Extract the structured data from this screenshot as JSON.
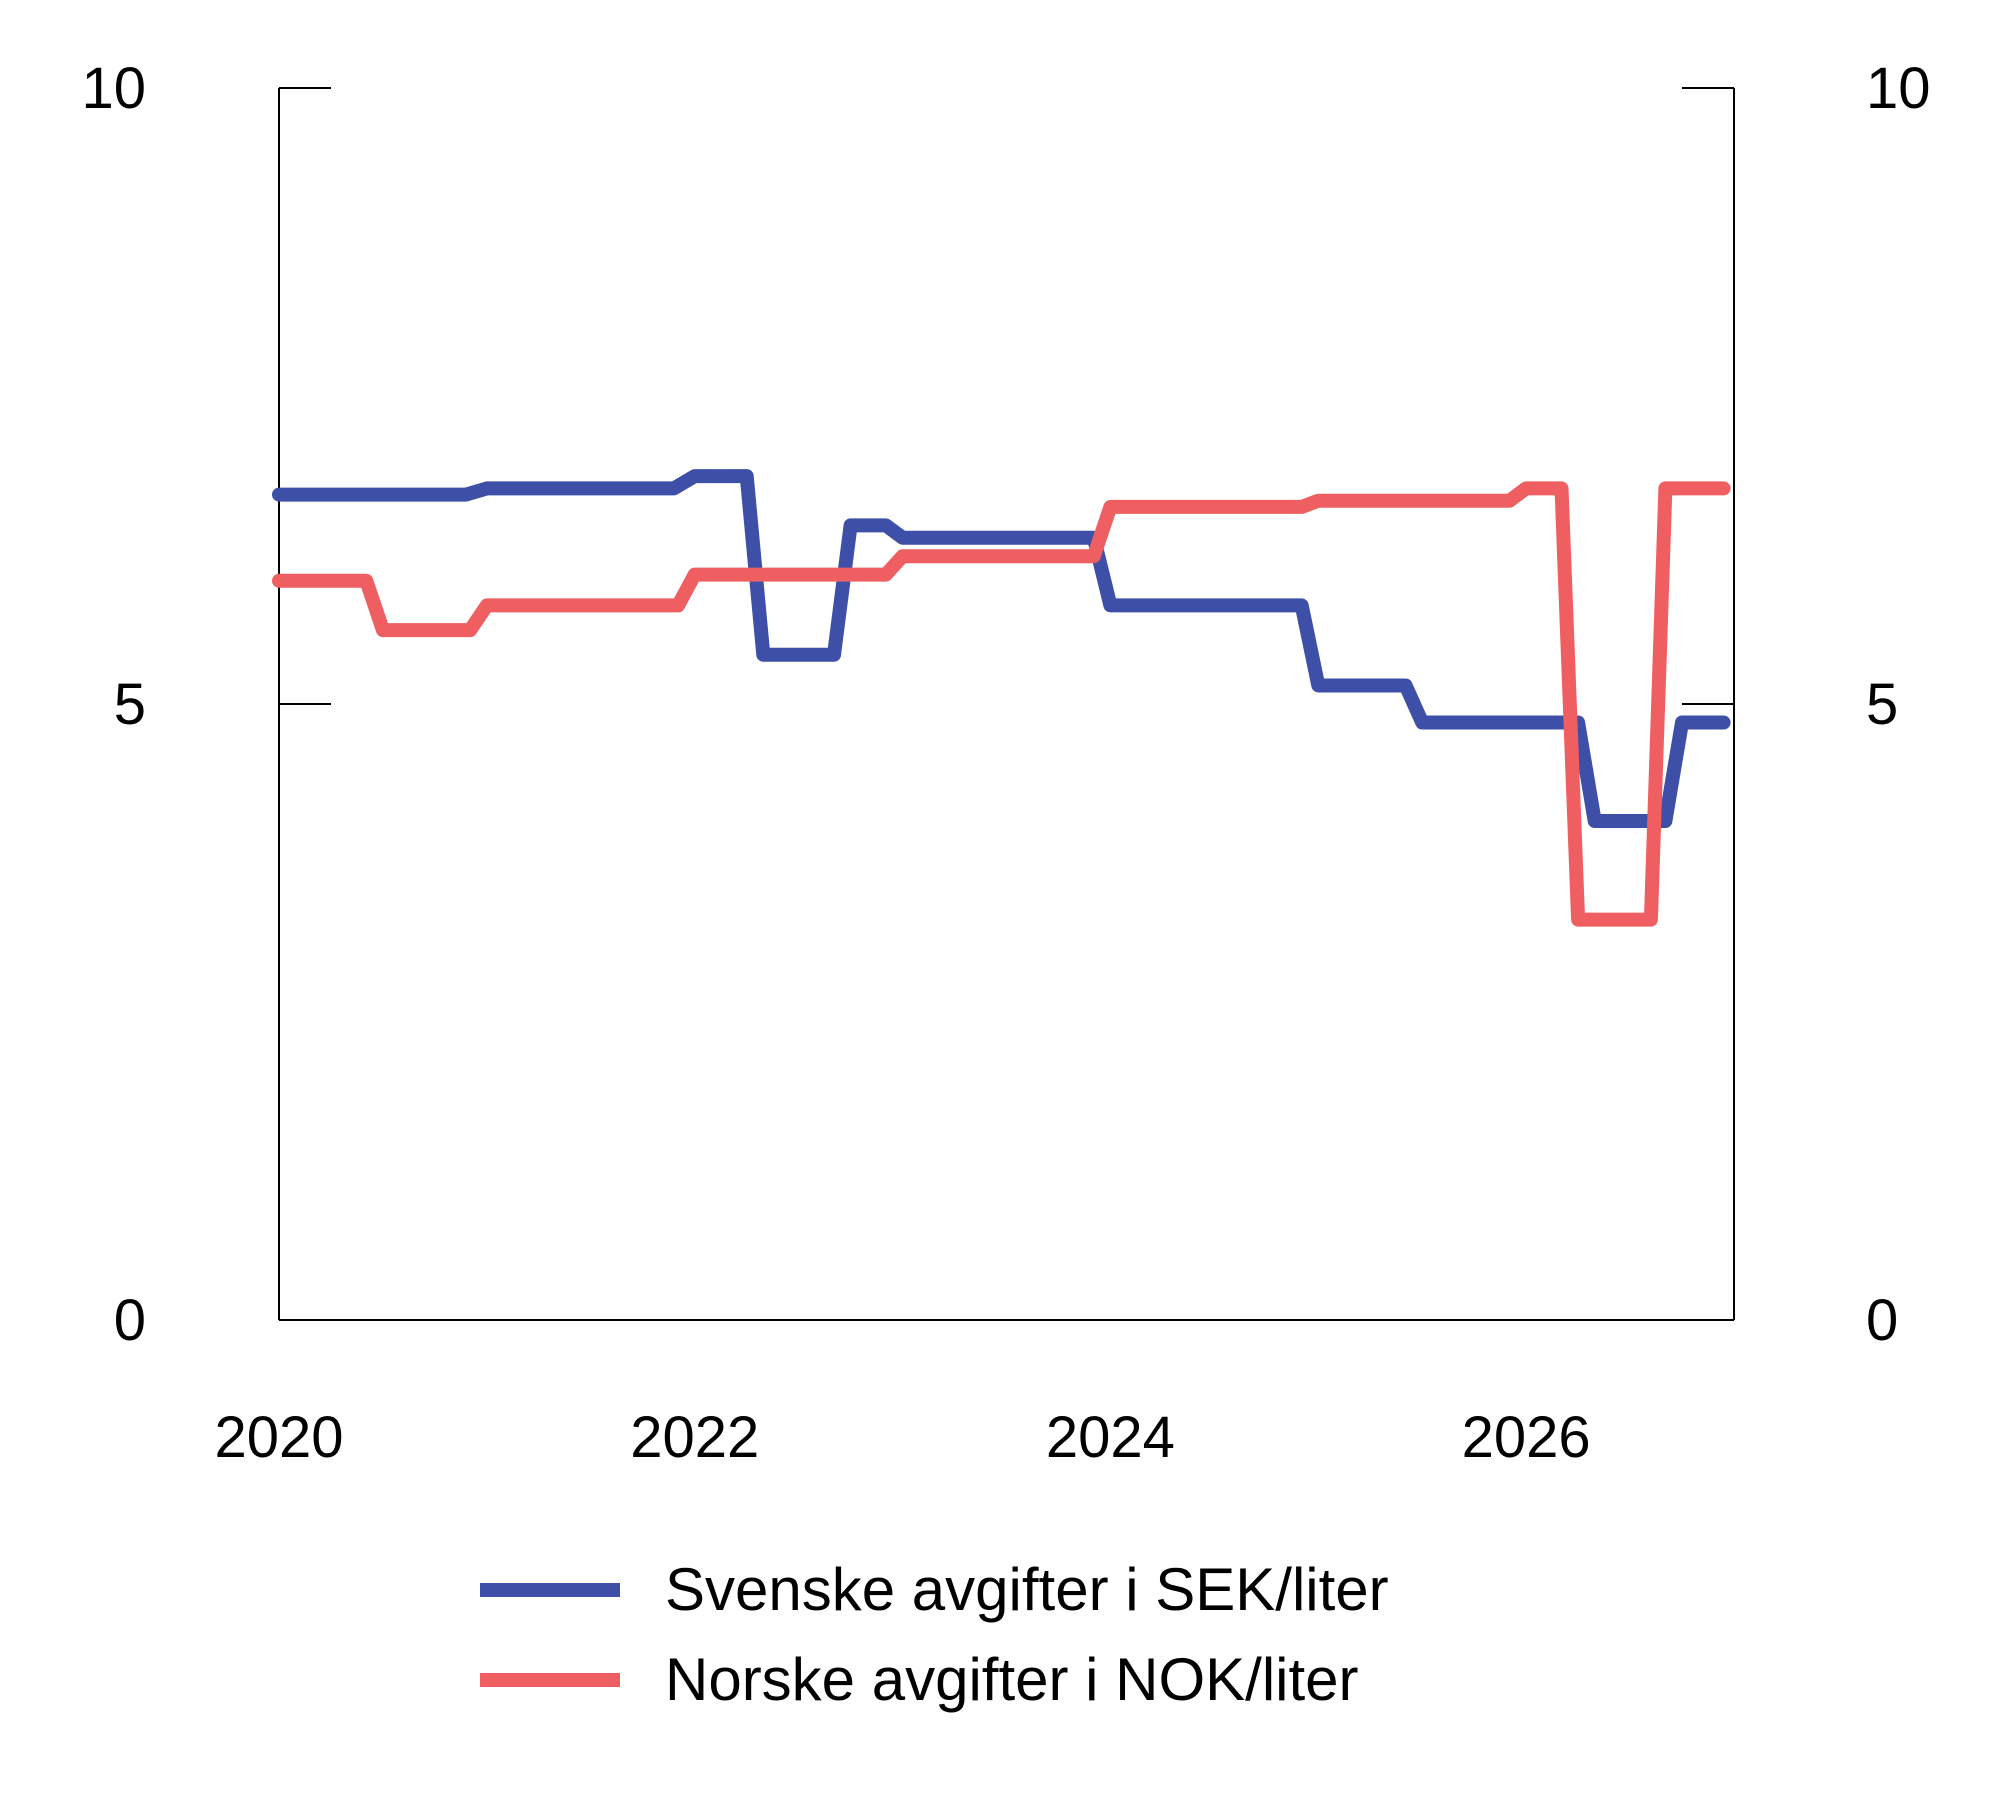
{
  "chart_data": {
    "type": "line",
    "title": "",
    "xlabel": "",
    "ylabel": "",
    "xlim": [
      2020,
      2027
    ],
    "ylim": [
      0,
      10
    ],
    "x_ticks": [
      "2020",
      "2022",
      "2024",
      "2026"
    ],
    "y_ticks_left": [
      "0",
      "5",
      "10"
    ],
    "y_ticks_right": [
      "0",
      "5",
      "10"
    ],
    "grid": false,
    "legend_position": "bottom",
    "series": [
      {
        "name": "Svenske avgifter i SEK/liter",
        "color": "#3e4fa7",
        "points": [
          [
            2020.0,
            6.7
          ],
          [
            2020.9,
            6.7
          ],
          [
            2021.0,
            6.75
          ],
          [
            2021.9,
            6.75
          ],
          [
            2022.0,
            6.85
          ],
          [
            2022.25,
            6.85
          ],
          [
            2022.33,
            5.4
          ],
          [
            2022.67,
            5.4
          ],
          [
            2022.75,
            6.45
          ],
          [
            2022.92,
            6.45
          ],
          [
            2023.0,
            6.35
          ],
          [
            2023.92,
            6.35
          ],
          [
            2024.0,
            5.8
          ],
          [
            2024.92,
            5.8
          ],
          [
            2025.0,
            5.15
          ],
          [
            2025.42,
            5.15
          ],
          [
            2025.5,
            4.85
          ],
          [
            2026.25,
            4.85
          ],
          [
            2026.33,
            4.05
          ],
          [
            2026.67,
            4.05
          ],
          [
            2026.75,
            4.85
          ],
          [
            2026.95,
            4.85
          ]
        ]
      },
      {
        "name": "Norske avgifter i NOK/liter",
        "color": "#ef5f62",
        "points": [
          [
            2020.0,
            6.0
          ],
          [
            2020.42,
            6.0
          ],
          [
            2020.5,
            5.6
          ],
          [
            2020.92,
            5.6
          ],
          [
            2021.0,
            5.8
          ],
          [
            2021.92,
            5.8
          ],
          [
            2022.0,
            6.05
          ],
          [
            2022.92,
            6.05
          ],
          [
            2023.0,
            6.2
          ],
          [
            2023.92,
            6.2
          ],
          [
            2024.0,
            6.6
          ],
          [
            2024.92,
            6.6
          ],
          [
            2025.0,
            6.65
          ],
          [
            2025.92,
            6.65
          ],
          [
            2026.0,
            6.75
          ],
          [
            2026.17,
            6.75
          ],
          [
            2026.25,
            3.25
          ],
          [
            2026.6,
            3.25
          ],
          [
            2026.67,
            6.75
          ],
          [
            2026.95,
            6.75
          ]
        ]
      }
    ]
  }
}
